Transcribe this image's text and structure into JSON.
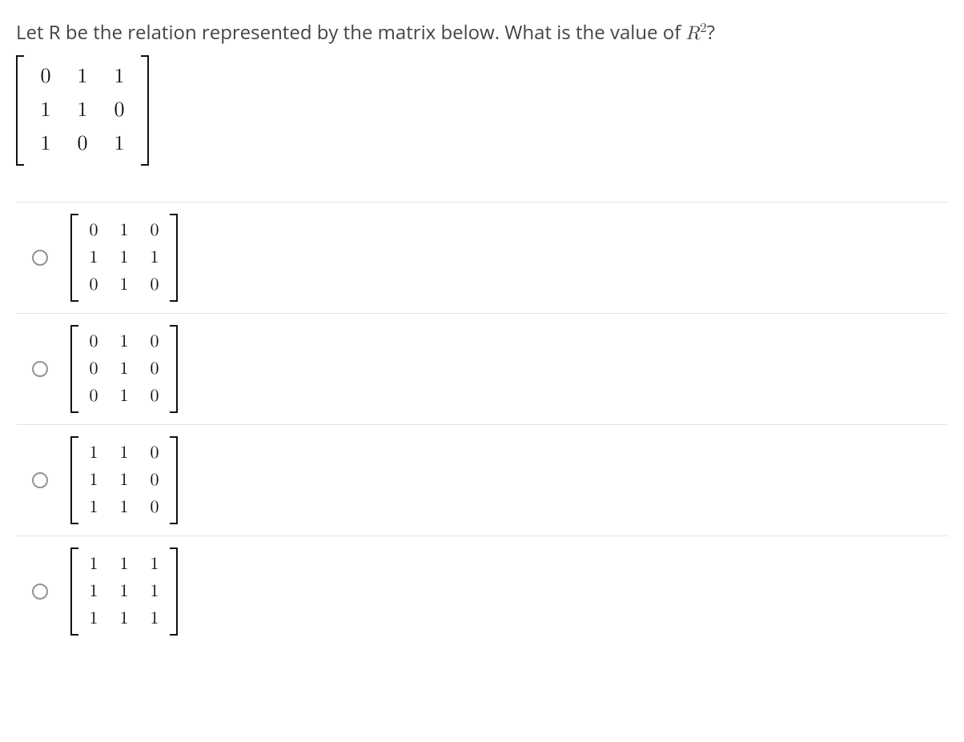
{
  "question": {
    "prefix": "Let R be the relation represented by the matrix below.  What is the value of ",
    "mathVar": "R",
    "mathExp": "2",
    "suffix": "?"
  },
  "givenMatrix": [
    [
      "0",
      "1",
      "1"
    ],
    [
      "1",
      "1",
      "0"
    ],
    [
      "1",
      "0",
      "1"
    ]
  ],
  "options": [
    {
      "rows": [
        [
          "0",
          "1",
          "0"
        ],
        [
          "1",
          "1",
          "1"
        ],
        [
          "0",
          "1",
          "0"
        ]
      ]
    },
    {
      "rows": [
        [
          "0",
          "1",
          "0"
        ],
        [
          "0",
          "1",
          "0"
        ],
        [
          "0",
          "1",
          "0"
        ]
      ]
    },
    {
      "rows": [
        [
          "1",
          "1",
          "0"
        ],
        [
          "1",
          "1",
          "0"
        ],
        [
          "1",
          "1",
          "0"
        ]
      ]
    },
    {
      "rows": [
        [
          "1",
          "1",
          "1"
        ],
        [
          "1",
          "1",
          "1"
        ],
        [
          "1",
          "1",
          "1"
        ]
      ]
    }
  ],
  "style": {
    "textColor": "#3c3c3c",
    "matrixColor": "#111111",
    "dividerColor": "#e5e5e5",
    "radioBorder": "#939393",
    "background": "#ffffff",
    "bodyFontSize": 24,
    "optionMatrixFontSize": 22,
    "givenMatrixFontSize": 26
  }
}
